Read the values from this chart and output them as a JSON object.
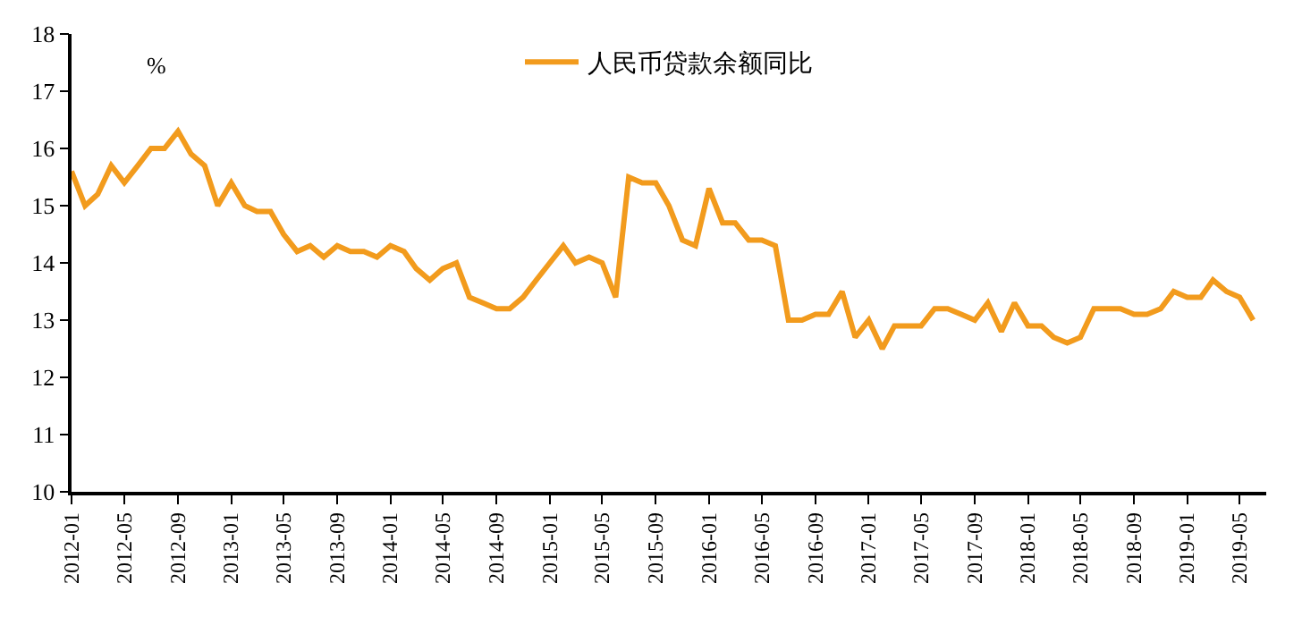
{
  "chart_data": {
    "type": "line",
    "ylabel": "%",
    "legend": "top",
    "x": [
      "2012-01",
      "2012-02",
      "2012-03",
      "2012-04",
      "2012-05",
      "2012-06",
      "2012-07",
      "2012-08",
      "2012-09",
      "2012-10",
      "2012-11",
      "2012-12",
      "2013-01",
      "2013-02",
      "2013-03",
      "2013-04",
      "2013-05",
      "2013-06",
      "2013-07",
      "2013-08",
      "2013-09",
      "2013-10",
      "2013-11",
      "2013-12",
      "2014-01",
      "2014-02",
      "2014-03",
      "2014-04",
      "2014-05",
      "2014-06",
      "2014-07",
      "2014-08",
      "2014-09",
      "2014-10",
      "2014-11",
      "2014-12",
      "2015-01",
      "2015-02",
      "2015-03",
      "2015-04",
      "2015-05",
      "2015-06",
      "2015-07",
      "2015-08",
      "2015-09",
      "2015-10",
      "2015-11",
      "2015-12",
      "2016-01",
      "2016-02",
      "2016-03",
      "2016-04",
      "2016-05",
      "2016-06",
      "2016-07",
      "2016-08",
      "2016-09",
      "2016-10",
      "2016-11",
      "2016-12",
      "2017-01",
      "2017-02",
      "2017-03",
      "2017-04",
      "2017-05",
      "2017-06",
      "2017-07",
      "2017-08",
      "2017-09",
      "2017-10",
      "2017-11",
      "2017-12",
      "2018-01",
      "2018-02",
      "2018-03",
      "2018-04",
      "2018-05",
      "2018-06",
      "2018-07",
      "2018-08",
      "2018-09",
      "2018-10",
      "2018-11",
      "2018-12",
      "2019-01",
      "2019-02",
      "2019-03",
      "2019-04",
      "2019-05",
      "2019-06"
    ],
    "series": [
      {
        "name": "人民币贷款余额同比",
        "color": "#f29b1d",
        "values": [
          15.6,
          15.0,
          15.2,
          15.7,
          15.4,
          15.7,
          16.0,
          16.0,
          16.3,
          15.9,
          15.7,
          15.0,
          15.4,
          15.0,
          14.9,
          14.9,
          14.5,
          14.2,
          14.3,
          14.1,
          14.3,
          14.2,
          14.2,
          14.1,
          14.3,
          14.2,
          13.9,
          13.7,
          13.9,
          14.0,
          13.4,
          13.3,
          13.2,
          13.2,
          13.4,
          13.7,
          14.0,
          14.3,
          14.0,
          14.1,
          14.0,
          13.4,
          15.5,
          15.4,
          15.4,
          15.0,
          14.4,
          14.3,
          15.3,
          14.7,
          14.7,
          14.4,
          14.4,
          14.3,
          13.0,
          13.0,
          13.1,
          13.1,
          13.5,
          12.7,
          13.0,
          12.5,
          12.9,
          12.9,
          12.9,
          13.2,
          13.2,
          13.1,
          13.0,
          13.3,
          12.8,
          13.3,
          12.9,
          12.9,
          12.7,
          12.6,
          12.7,
          13.2,
          13.2,
          13.2,
          13.1,
          13.1,
          13.2,
          13.5,
          13.4,
          13.4,
          13.7,
          13.5,
          13.4,
          13.0
        ]
      }
    ],
    "xlim": [
      "2012-01",
      "2019-07"
    ],
    "xticks": [
      "2012-01",
      "2012-05",
      "2012-09",
      "2013-01",
      "2013-05",
      "2013-09",
      "2014-01",
      "2014-05",
      "2014-09",
      "2015-01",
      "2015-05",
      "2015-09",
      "2016-01",
      "2016-05",
      "2016-09",
      "2017-01",
      "2017-05",
      "2017-09",
      "2018-01",
      "2018-05",
      "2018-09",
      "2019-01",
      "2019-05"
    ],
    "ylim": [
      10,
      18
    ],
    "yticks": [
      10,
      11,
      12,
      13,
      14,
      15,
      16,
      17,
      18
    ],
    "marker": "none",
    "line_style": "solid"
  }
}
